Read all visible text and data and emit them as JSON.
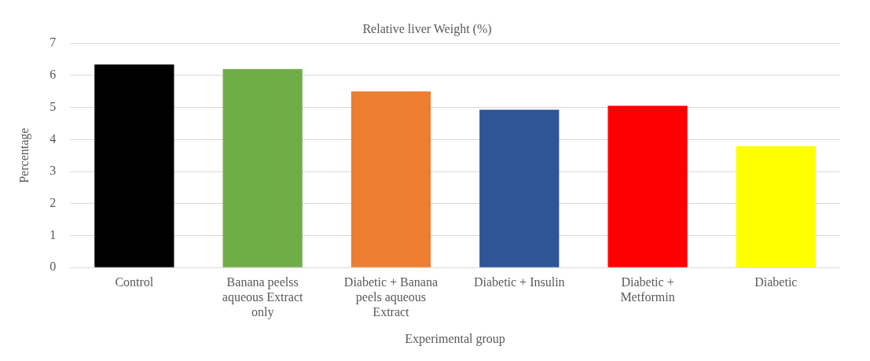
{
  "chart_data": {
    "type": "bar",
    "title": "Relative liver Weight (%)",
    "xlabel": "Experimental group",
    "ylabel": "Percentage",
    "categories": [
      "Control",
      "Banana peelss aqueous Extract only",
      "Diabetic + Banana peels aqueous Extract",
      "Diabetic + Insulin",
      "Diabetic + Metformin",
      "Diabetic"
    ],
    "values": [
      6.34,
      6.2,
      5.5,
      4.93,
      5.05,
      3.79
    ],
    "colors": [
      "#000000",
      "#70ad47",
      "#ed7d31",
      "#2f5597",
      "#ff0000",
      "#ffff00"
    ],
    "ylim": [
      0,
      7
    ],
    "yticks": [
      0,
      1,
      2,
      3,
      4,
      5,
      6,
      7
    ],
    "grid": "y",
    "legend": false
  }
}
